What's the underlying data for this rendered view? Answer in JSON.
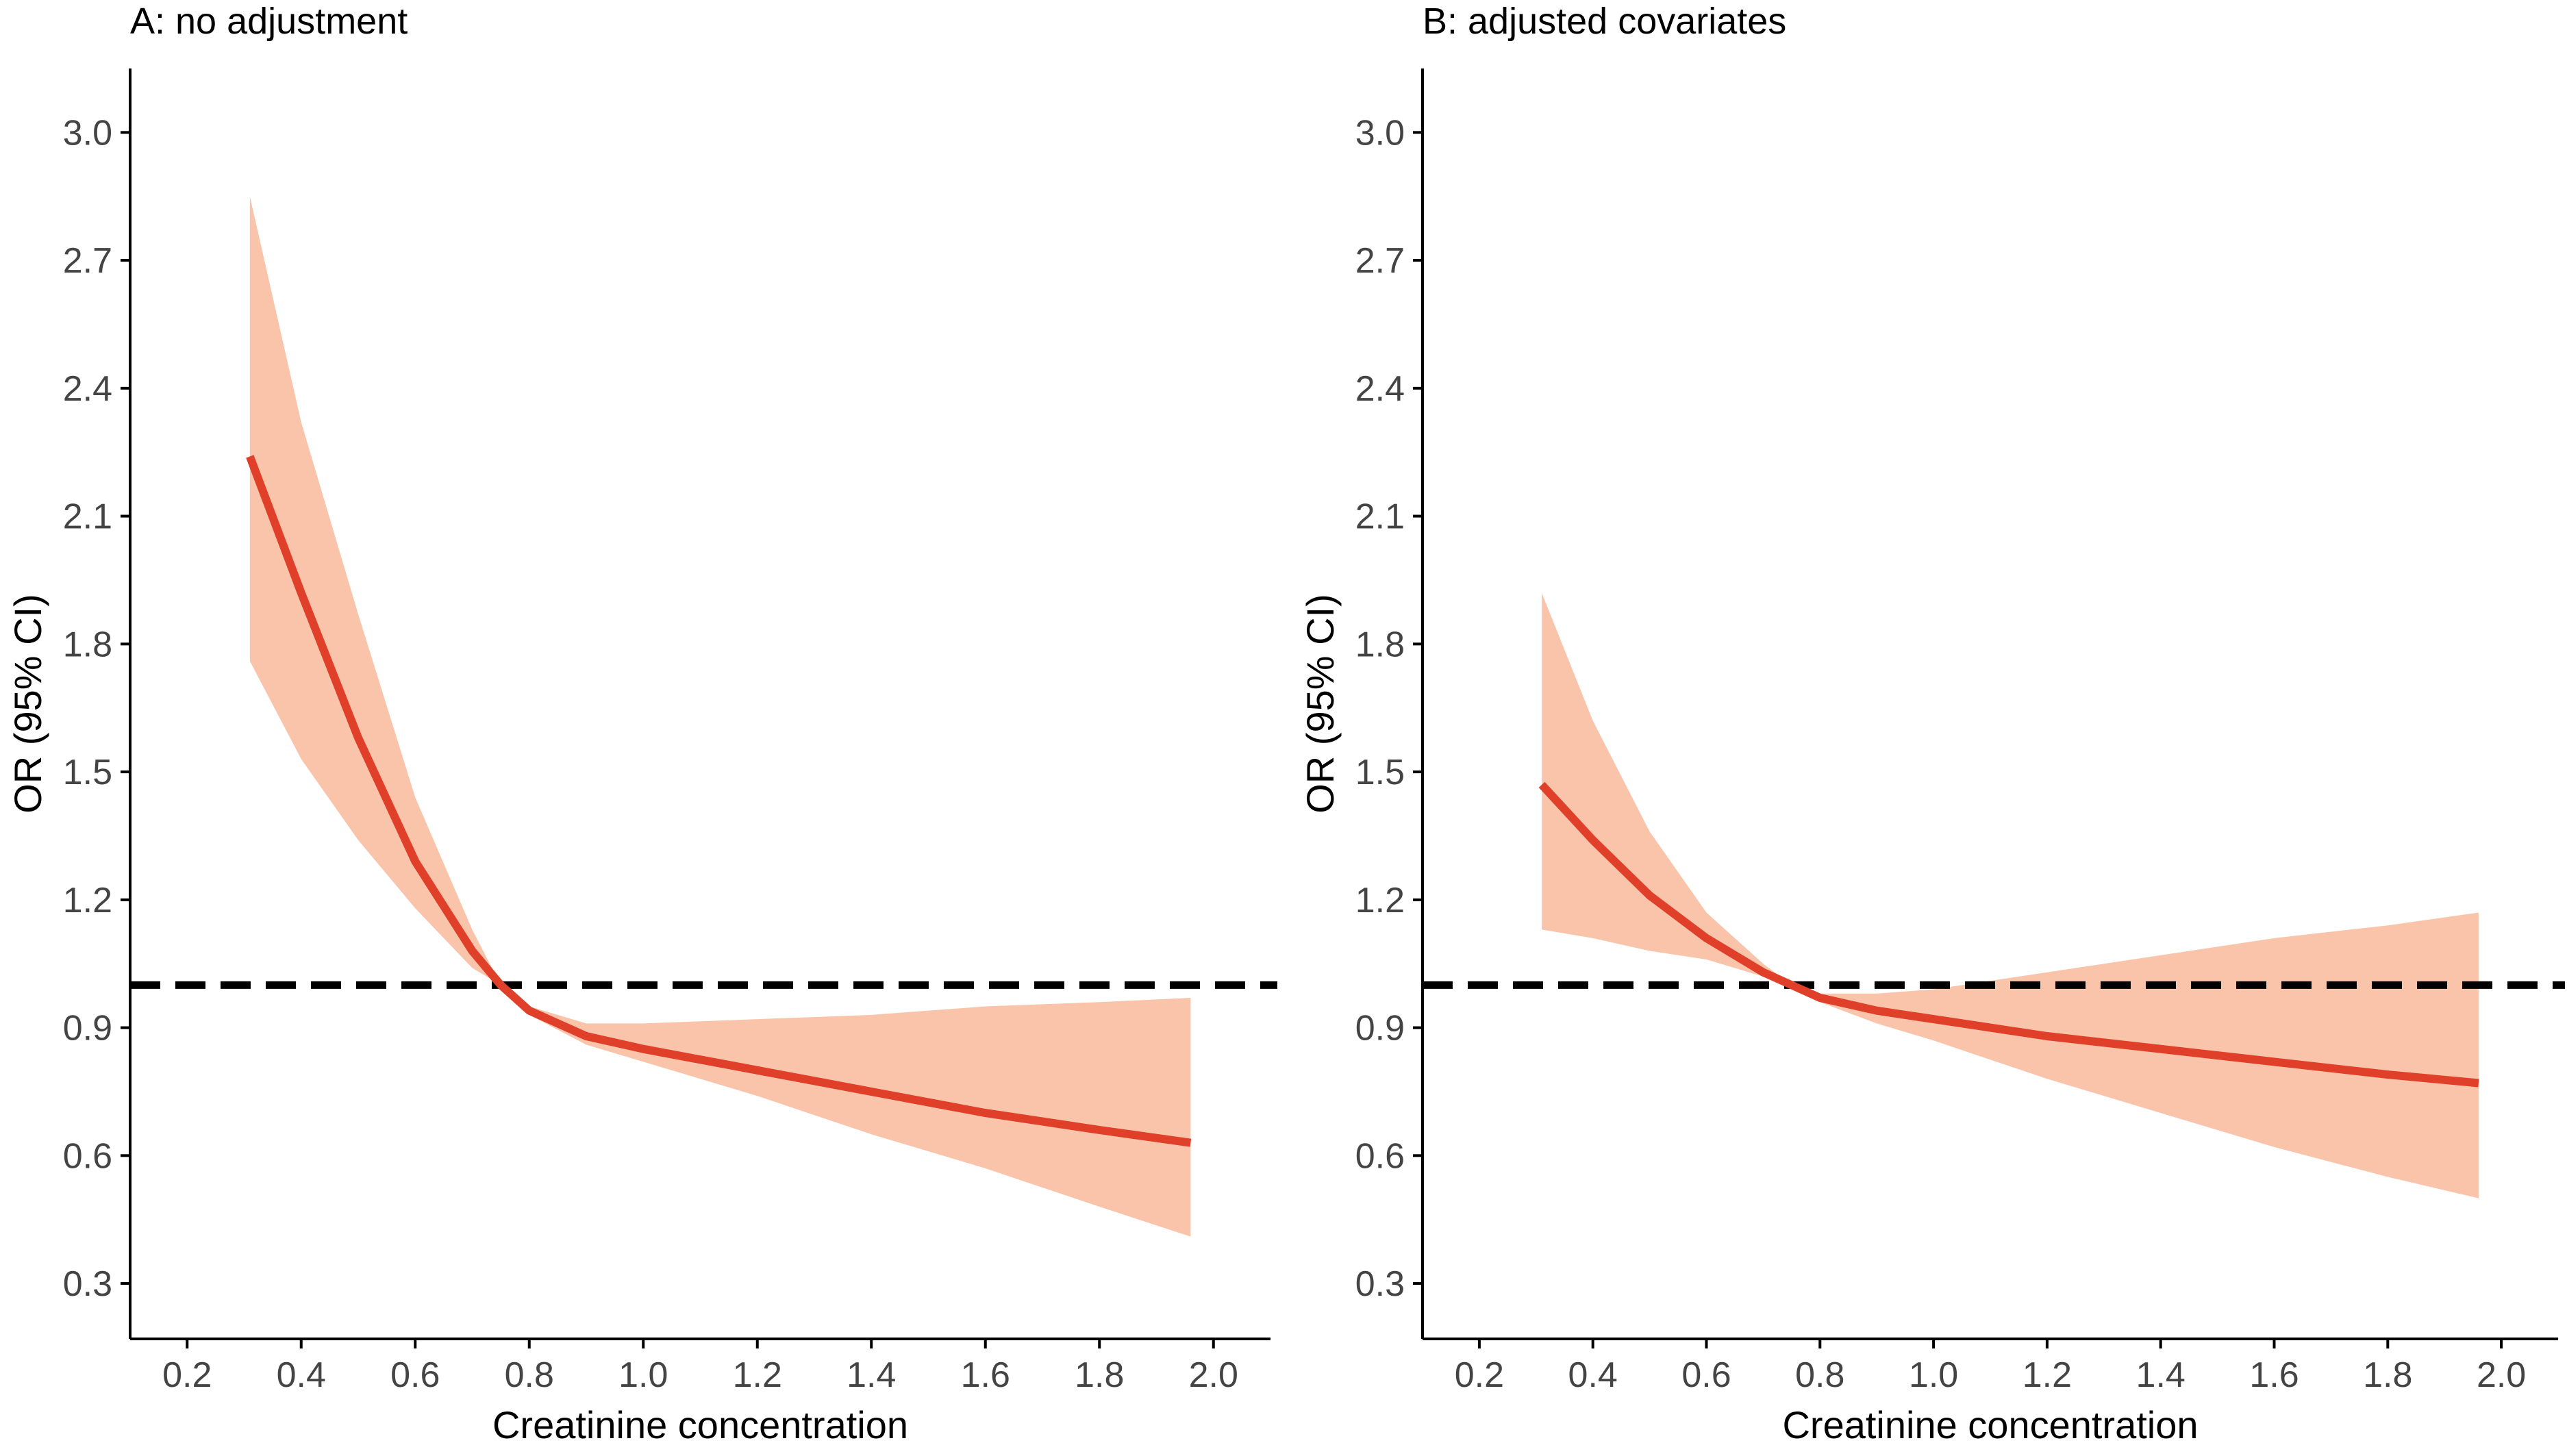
{
  "colors": {
    "line": "#e0402a",
    "band": "#f9c4aa",
    "reference": "#000000",
    "axis": "#000000",
    "tick_text": "#444444"
  },
  "chart_data": [
    {
      "type": "line",
      "title": "A: no adjustment",
      "xlabel": "Creatinine concentration",
      "ylabel": "OR (95% CI)",
      "xlim": [
        0.1,
        2.1
      ],
      "ylim": [
        0.17,
        3.15
      ],
      "xticks": [
        "0.2",
        "0.4",
        "0.6",
        "0.8",
        "1.0",
        "1.2",
        "1.4",
        "1.6",
        "1.8",
        "2.0"
      ],
      "yticks": [
        "0.3",
        "0.6",
        "0.9",
        "1.2",
        "1.5",
        "1.8",
        "2.1",
        "2.4",
        "2.7",
        "3.0"
      ],
      "reference_line": 1.0,
      "series": [
        {
          "name": "OR",
          "x": [
            0.31,
            0.4,
            0.5,
            0.6,
            0.7,
            0.75,
            0.8,
            0.9,
            1.0,
            1.2,
            1.4,
            1.6,
            1.8,
            1.96
          ],
          "y": [
            2.24,
            1.92,
            1.58,
            1.29,
            1.08,
            1.0,
            0.94,
            0.88,
            0.85,
            0.8,
            0.75,
            0.7,
            0.66,
            0.63
          ],
          "lower": [
            1.76,
            1.53,
            1.34,
            1.18,
            1.04,
            1.0,
            0.93,
            0.86,
            0.82,
            0.74,
            0.65,
            0.57,
            0.48,
            0.41
          ],
          "upper": [
            2.85,
            2.32,
            1.87,
            1.44,
            1.13,
            1.0,
            0.95,
            0.91,
            0.91,
            0.92,
            0.93,
            0.95,
            0.96,
            0.97
          ]
        }
      ]
    },
    {
      "type": "line",
      "title": "B: adjusted covariates",
      "xlabel": "Creatinine concentration",
      "ylabel": "OR (95% CI)",
      "xlim": [
        0.1,
        2.1
      ],
      "ylim": [
        0.17,
        3.15
      ],
      "xticks": [
        "0.2",
        "0.4",
        "0.6",
        "0.8",
        "1.0",
        "1.2",
        "1.4",
        "1.6",
        "1.8",
        "2.0"
      ],
      "yticks": [
        "0.3",
        "0.6",
        "0.9",
        "1.2",
        "1.5",
        "1.8",
        "2.1",
        "2.4",
        "2.7",
        "3.0"
      ],
      "reference_line": 1.0,
      "series": [
        {
          "name": "OR",
          "x": [
            0.31,
            0.4,
            0.5,
            0.6,
            0.7,
            0.75,
            0.8,
            0.9,
            1.0,
            1.2,
            1.4,
            1.6,
            1.8,
            1.96
          ],
          "y": [
            1.47,
            1.34,
            1.21,
            1.11,
            1.03,
            1.0,
            0.97,
            0.94,
            0.92,
            0.88,
            0.85,
            0.82,
            0.79,
            0.77
          ],
          "lower": [
            1.13,
            1.11,
            1.08,
            1.06,
            1.02,
            1.0,
            0.96,
            0.91,
            0.87,
            0.78,
            0.7,
            0.62,
            0.55,
            0.5
          ],
          "upper": [
            1.92,
            1.62,
            1.36,
            1.17,
            1.05,
            1.0,
            0.98,
            0.98,
            0.99,
            1.03,
            1.07,
            1.11,
            1.14,
            1.17
          ]
        }
      ]
    }
  ]
}
